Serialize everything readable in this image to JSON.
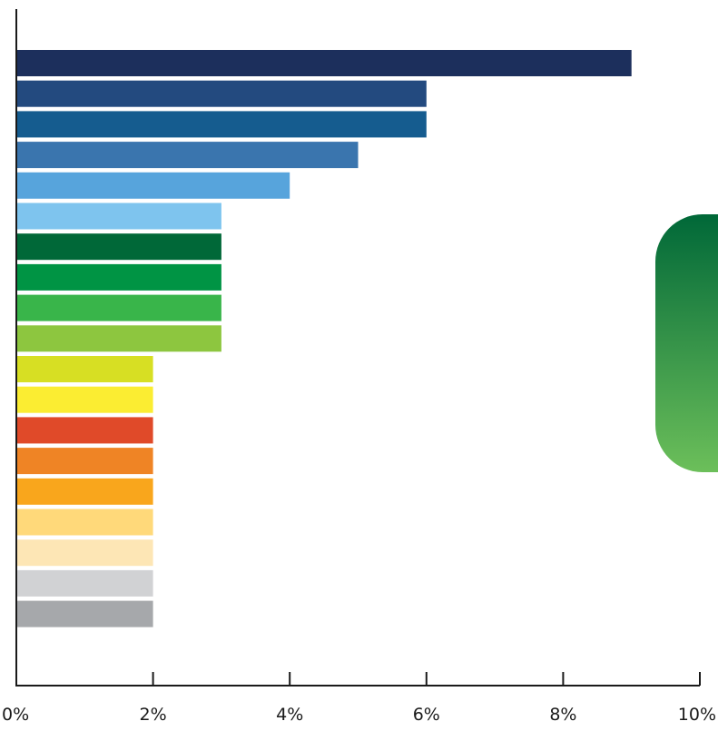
{
  "chart_data": {
    "type": "bar",
    "orientation": "horizontal",
    "title": "",
    "xlabel": "",
    "ylabel": "",
    "xlim": [
      0,
      10
    ],
    "x_ticks": [
      0,
      2,
      4,
      6,
      8,
      10
    ],
    "x_tick_labels": [
      "0%",
      "2%",
      "4%",
      "6%",
      "8%",
      "10%"
    ],
    "grid": false,
    "legend": "none",
    "values": [
      9,
      6,
      6,
      5,
      4,
      3,
      3,
      3,
      3,
      3,
      2,
      2,
      2,
      2,
      2,
      2,
      2,
      2,
      2
    ],
    "colors": [
      "#1c2f5c",
      "#234a7f",
      "#155c8f",
      "#3a75ae",
      "#57a4dc",
      "#7ec4ee",
      "#006838",
      "#009444",
      "#39b54a",
      "#8dc63f",
      "#d7df23",
      "#fbed32",
      "#e04a29",
      "#ef8425",
      "#f9a61c",
      "#ffd97a",
      "#fde6b5",
      "#d1d2d4",
      "#a6a8ab"
    ]
  },
  "decoration": {
    "tab_gradient": [
      "#006838",
      "#6cbf5a"
    ]
  }
}
